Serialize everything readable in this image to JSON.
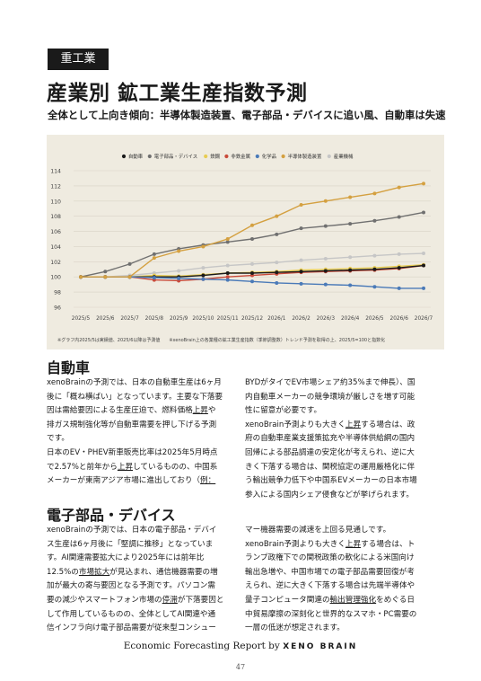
{
  "header": {
    "tag": "重工業",
    "title": "産業別 鉱工業生産指数予測",
    "subtitle": "全体として上向き傾向：半導体製造装置、電子部品・デバイスに追い風、自動車は失速"
  },
  "chart_data": {
    "type": "line",
    "x": [
      "2025/5",
      "2025/6",
      "2025/7",
      "2025/8",
      "2025/9",
      "2025/10",
      "2025/11",
      "2025/12",
      "2026/1",
      "2026/2",
      "2026/3",
      "2026/4",
      "2026/5",
      "2026/6",
      "2026/7"
    ],
    "ylim": [
      96,
      114
    ],
    "yticks": [
      96,
      98,
      100,
      102,
      104,
      106,
      108,
      110,
      112,
      114
    ],
    "grid": true,
    "legend_position": "top",
    "series": [
      {
        "name": "自動車",
        "color": "#1a1a1a",
        "values": [
          100,
          100,
          100,
          100,
          100,
          100.2,
          100.5,
          100.5,
          100.6,
          100.7,
          100.8,
          100.9,
          101.0,
          101.2,
          101.5
        ]
      },
      {
        "name": "電子部品・デバイス",
        "color": "#707070",
        "values": [
          100,
          100.7,
          101.7,
          103.0,
          103.7,
          104.2,
          104.6,
          105.0,
          105.6,
          106.4,
          106.7,
          107.0,
          107.4,
          107.9,
          108.5
        ]
      },
      {
        "name": "鉄鋼",
        "color": "#e8cc52",
        "values": [
          100,
          100,
          100,
          100.2,
          100.1,
          100.3,
          100.5,
          100.6,
          100.7,
          100.9,
          101.0,
          101.1,
          101.2,
          101.4,
          101.6
        ]
      },
      {
        "name": "非鉄金属",
        "color": "#c94a3a",
        "values": [
          100,
          100,
          100,
          99.6,
          99.5,
          99.7,
          100.0,
          100.2,
          100.4,
          100.6,
          100.7,
          100.8,
          100.9,
          101.1,
          101.5
        ]
      },
      {
        "name": "化学品",
        "color": "#4a7ab8",
        "values": [
          100,
          100,
          100,
          99.9,
          99.8,
          99.7,
          99.6,
          99.4,
          99.2,
          99.1,
          99.0,
          98.9,
          98.7,
          98.5,
          98.5
        ]
      },
      {
        "name": "半導体製造装置",
        "color": "#d4a040",
        "values": [
          100,
          100,
          100,
          102.5,
          103.4,
          104.0,
          105.0,
          106.8,
          108.0,
          109.5,
          110.0,
          110.5,
          111.0,
          111.8,
          112.3
        ]
      },
      {
        "name": "産業機械",
        "color": "#c6c6c6",
        "values": [
          100,
          100,
          100.2,
          100.5,
          100.8,
          101.2,
          101.5,
          101.7,
          101.9,
          102.2,
          102.4,
          102.6,
          102.8,
          103.0,
          103.1
        ]
      }
    ],
    "note": "※グラフ内2025/5は実績値、2025/6以降は予測値　　※xenoBrain上の各業種の鉱工業生産指数（季節調整数）トレンド予測を取得の上、2025/5=100と指数化"
  },
  "sections": [
    {
      "heading": "自動車",
      "left_lines": [
        "xenoBrainの予測では、日本の自動車生産は6ヶ月",
        "後に「概ね横ばい」となっています。主要な下落要",
        "因は需給要因による生産圧迫で、燃料価格上昇や",
        "排ガス規制強化等が自動車需要を押し下げる予測",
        "です。",
        "日本のEV・PHEV新車販売比率は2025年5月時点",
        "で2.57%と前年から上昇しているものの、中国系",
        "メーカーが東南アジア市場に進出しており（例："
      ],
      "right_lines": [
        "BYDがタイでEV市場シェア約35%まで伸長）、国",
        "内自動車メーカーの競争環境が厳しさを増す可能",
        "性に留意が必要です。",
        "xenoBrain予測よりも大きく上昇する場合は、政",
        "府の自動車産業支援策拡充や半導体供給網の国内",
        "回帰による部品調達の安定化が考えられ、逆に大",
        "きく下落する場合は、関税協定の運用厳格化に伴",
        "う輸出競争力低下や中国系EVメーカーの日本市場",
        "参入による国内シェア侵食などが挙げられます。"
      ]
    },
    {
      "heading": "電子部品・デバイス",
      "left_lines": [
        "xenoBrainの予測では、日本の電子部品・デバイ",
        "ス生産は6ヶ月後に「堅調に推移」となっていま",
        "す。AI関連需要拡大により2025年には前年比",
        "12.5%の市場拡大が見込まれ、通信機器需要の増",
        "加が最大の寄与要因となる予測です。パソコン需",
        "要の減少やスマートフォン市場の停滞が下落要因と",
        "して作用しているものの、全体としてAI関連や通",
        "信インフラ向け電子部品需要が従来型コンシュー"
      ],
      "right_lines": [
        "マー機器需要の減速を上回る見通しです。",
        "xenoBrain予測よりも大きく上昇する場合は、ト",
        "ランプ政権下での関税政策の軟化による米国向け",
        "輸出急増や、中国市場での電子部品需要回復が考",
        "えられ、逆に大きく下落する場合は先端半導体や",
        "量子コンピュータ関連の輸出管理強化をめぐる日",
        "中貿易摩擦の深刻化と世界的なスマホ・PC需要の",
        "一層の低迷が想定されます。"
      ]
    }
  ],
  "footer": {
    "text": "Economic Forecasting Report by",
    "brand": "XENO BRAIN",
    "page": "47"
  }
}
